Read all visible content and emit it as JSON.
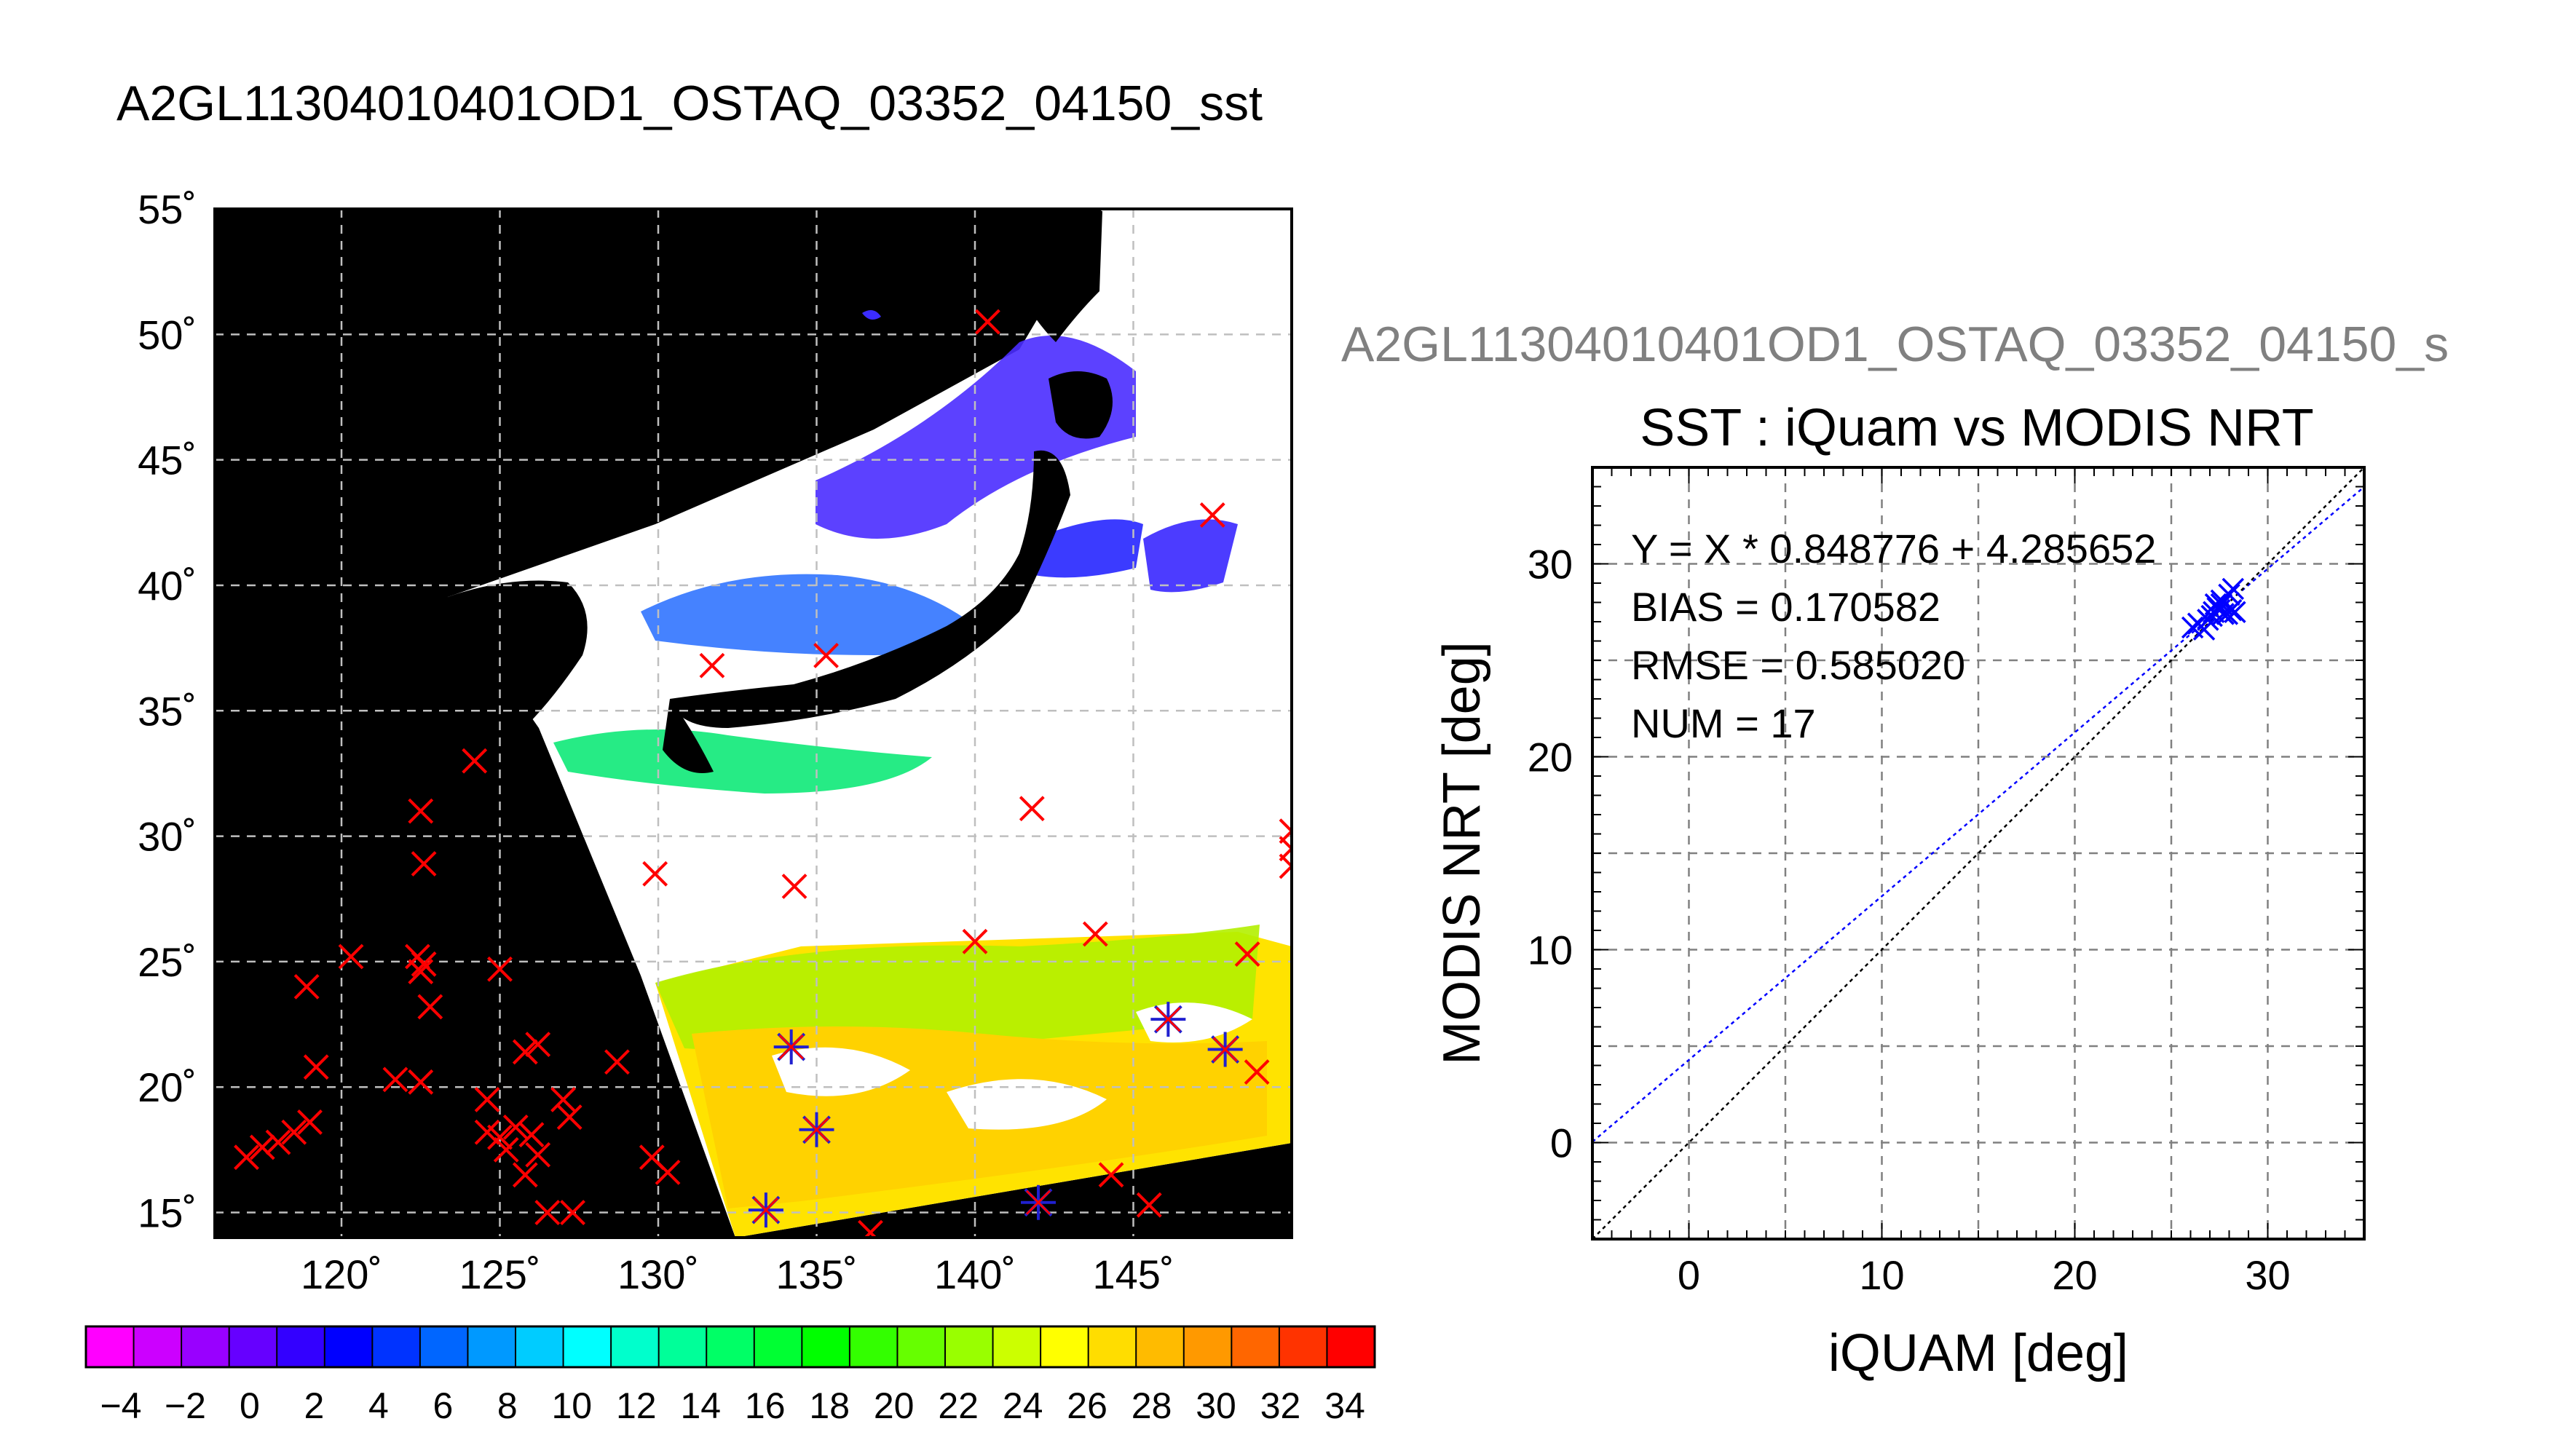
{
  "map_panel": {
    "title": "A2GL11304010401OD1_OSTAQ_03352_04150_sst",
    "lat_ticks": [
      "55˚",
      "50˚",
      "45˚",
      "40˚",
      "35˚",
      "30˚",
      "25˚",
      "20˚",
      "15˚"
    ],
    "lon_ticks": [
      "120˚",
      "125˚",
      "130˚",
      "135˚",
      "140˚",
      "145˚"
    ],
    "colors": {
      "land_background": "#000000",
      "cloud_mask": "#ffffff",
      "grid": "#bfbfbf",
      "marker_red": "#ff0000",
      "marker_blue": "#2020d0"
    }
  },
  "colorbar": {
    "tick_labels": [
      "−4",
      "−2",
      "0",
      "2",
      "4",
      "6",
      "8",
      "10",
      "12",
      "14",
      "16",
      "18",
      "20",
      "22",
      "24",
      "26",
      "28",
      "30",
      "32",
      "34"
    ],
    "colors": [
      "#ff00ff",
      "#cc00ff",
      "#9900ff",
      "#6600ff",
      "#3300ff",
      "#0000ff",
      "#0033ff",
      "#0066ff",
      "#0099ff",
      "#00ccff",
      "#00ffff",
      "#00ffcc",
      "#00ff99",
      "#00ff66",
      "#00ff33",
      "#00ff00",
      "#33ff00",
      "#66ff00",
      "#99ff00",
      "#ccff00",
      "#ffff00",
      "#ffdd00",
      "#ffbb00",
      "#ff9900",
      "#ff6600",
      "#ff3300",
      "#ff0000"
    ]
  },
  "scatter_panel": {
    "header": "A2GL11304010401OD1_OSTAQ_03352_04150_s",
    "stats": {
      "equation": "Y = X * 0.848776 + 4.285652",
      "bias": "BIAS = 0.170582",
      "rmse": "RMSE = 0.585020",
      "num": "NUM = 17"
    }
  },
  "chart_data": [
    {
      "type": "scatter",
      "title": "A2GL11304010401OD1_OSTAQ_03352_04150_sst",
      "xlabel": "",
      "ylabel": "",
      "xlim": [
        116,
        150
      ],
      "ylim": [
        14,
        55
      ],
      "series": [
        {
          "marker": "x-red",
          "points": [
            [
              117,
              17.2
            ],
            [
              117.5,
              17.6
            ],
            [
              118,
              17.8
            ],
            [
              118.5,
              18.2
            ],
            [
              119,
              18.6
            ],
            [
              119.2,
              20.8
            ],
            [
              118.9,
              24
            ],
            [
              120.3,
              25.2
            ],
            [
              122.4,
              25.2
            ],
            [
              122.6,
              24.9
            ],
            [
              122.5,
              24.6
            ],
            [
              122.8,
              23.2
            ],
            [
              122.5,
              20.2
            ],
            [
              121.7,
              20.3
            ],
            [
              124.6,
              19.5
            ],
            [
              124.6,
              18.2
            ],
            [
              125,
              18
            ],
            [
              125.2,
              17.5
            ],
            [
              125.5,
              18.4
            ],
            [
              126,
              18.1
            ],
            [
              126.2,
              17.3
            ],
            [
              125.8,
              16.5
            ],
            [
              126.5,
              15
            ],
            [
              127.3,
              15
            ],
            [
              125.8,
              21.4
            ],
            [
              126.2,
              21.7
            ],
            [
              127,
              19.5
            ],
            [
              127.2,
              18.8
            ],
            [
              128.7,
              21
            ],
            [
              129.8,
              17.2
            ],
            [
              130.3,
              16.6
            ],
            [
              122.5,
              31
            ],
            [
              122.6,
              28.9
            ],
            [
              124.2,
              33
            ],
            [
              125,
              24.7
            ],
            [
              129.9,
              28.5
            ],
            [
              131.7,
              36.8
            ],
            [
              134.3,
              28
            ],
            [
              135.3,
              37.2
            ],
            [
              141.8,
              31.1
            ],
            [
              140.4,
              50.5
            ],
            [
              147.5,
              42.8
            ],
            [
              140,
              25.8
            ],
            [
              143.8,
              26.1
            ],
            [
              150,
              30.2
            ],
            [
              150,
              29.5
            ],
            [
              150,
              28.8
            ],
            [
              148.6,
              25.3
            ],
            [
              148.9,
              20.6
            ],
            [
              144.3,
              16.5
            ],
            [
              145.5,
              15.3
            ],
            [
              136.7,
              14.2
            ]
          ]
        },
        {
          "marker": "star-blue-red",
          "points": [
            [
              134.2,
              21.6
            ],
            [
              135,
              18.3
            ],
            [
              133.4,
              15.1
            ],
            [
              142,
              15.4
            ],
            [
              146.1,
              22.7
            ],
            [
              147.9,
              21.5
            ]
          ]
        }
      ]
    },
    {
      "type": "scatter",
      "title": "SST : iQuam vs MODIS NRT",
      "xlabel": "iQUAM [deg]",
      "ylabel": "MODIS NRT [deg]",
      "xlim": [
        -5,
        35
      ],
      "ylim": [
        -5,
        35
      ],
      "xticks": [
        "0",
        "10",
        "20",
        "30"
      ],
      "yticks": [
        "0",
        "10",
        "20",
        "30"
      ],
      "grid": true,
      "series": [
        {
          "marker": "x-blue",
          "points": [
            [
              26.1,
              26.7
            ],
            [
              26.4,
              26.9
            ],
            [
              26.7,
              26.6
            ],
            [
              26.9,
              27.1
            ],
            [
              27.1,
              27.3
            ],
            [
              27.2,
              27.5
            ],
            [
              27.3,
              27.9
            ],
            [
              27.4,
              27.7
            ],
            [
              27.5,
              27.6
            ],
            [
              27.6,
              27.9
            ],
            [
              27.6,
              28.1
            ],
            [
              27.7,
              27.4
            ],
            [
              27.9,
              27.4
            ],
            [
              28,
              28.4
            ],
            [
              28.2,
              28.7
            ],
            [
              28.3,
              27.5
            ],
            [
              28.1,
              27.6
            ]
          ]
        }
      ],
      "lines": [
        {
          "kind": "regression",
          "slope": 0.848776,
          "intercept": 4.285652,
          "color": "#0000ff"
        },
        {
          "kind": "identity",
          "slope": 1,
          "intercept": 0,
          "color": "#000000"
        }
      ]
    }
  ]
}
